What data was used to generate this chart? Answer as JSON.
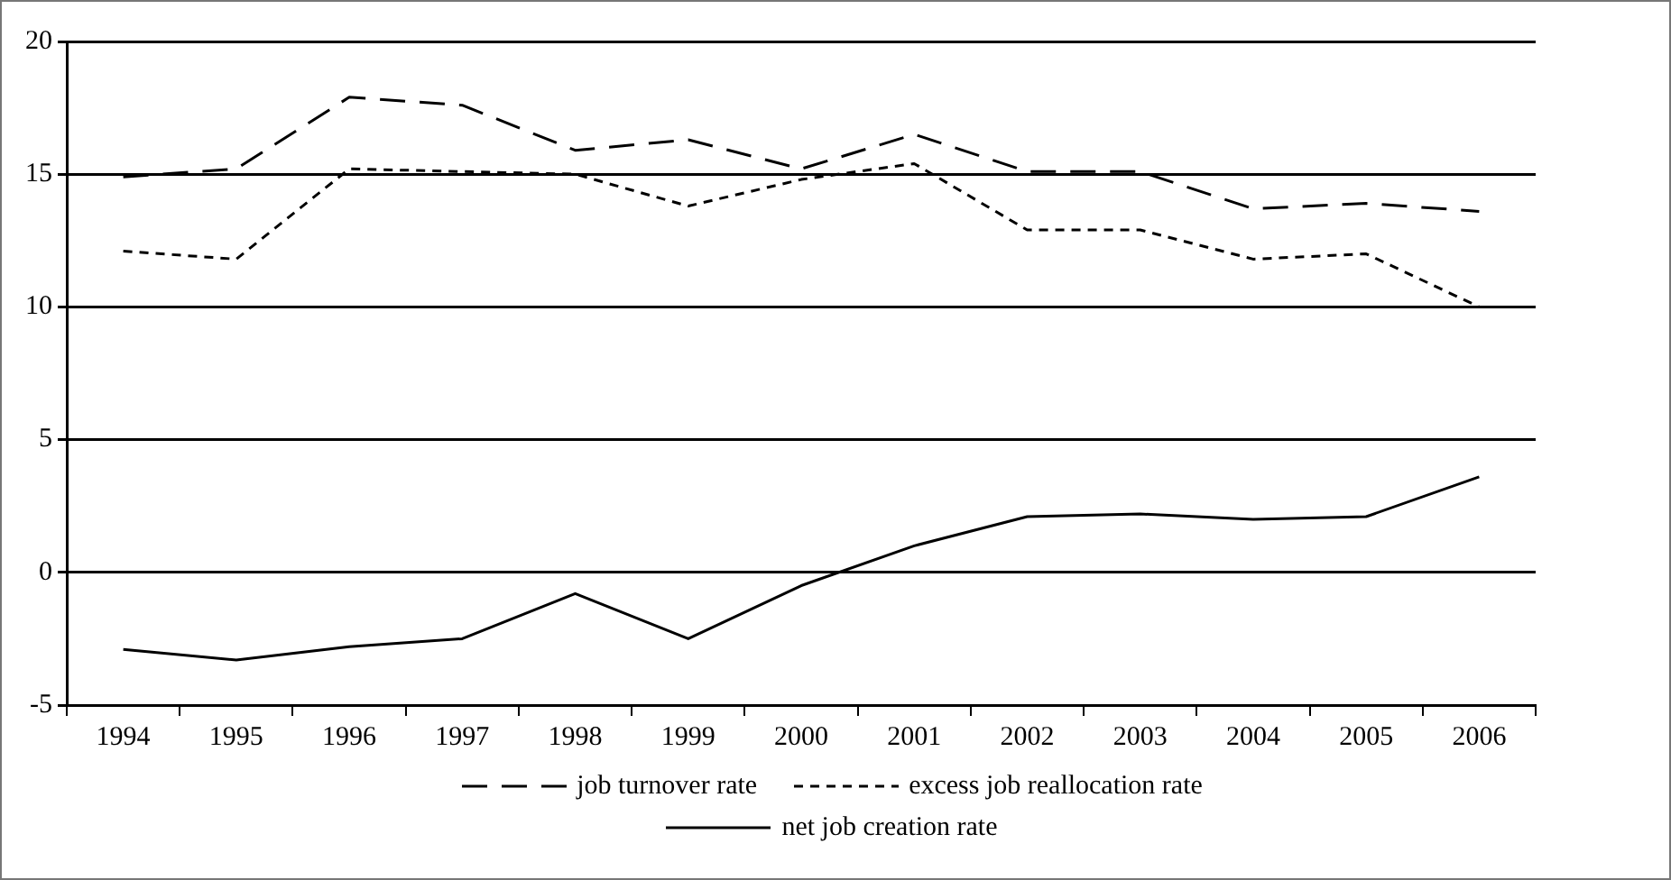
{
  "chart_data": {
    "type": "line",
    "categories": [
      "1994",
      "1995",
      "1996",
      "1997",
      "1998",
      "1999",
      "2000",
      "2001",
      "2002",
      "2003",
      "2004",
      "2005",
      "2006"
    ],
    "series": [
      {
        "name": "job turnover rate",
        "color": "#000000",
        "line_style": "dashed",
        "values": [
          14.9,
          15.2,
          17.9,
          17.6,
          15.9,
          16.3,
          15.2,
          16.5,
          15.1,
          15.1,
          13.7,
          13.9,
          13.6
        ]
      },
      {
        "name": "excess job reallocation rate",
        "color": "#000000",
        "line_style": "dotted",
        "values": [
          12.1,
          11.8,
          15.2,
          15.1,
          15.0,
          13.8,
          14.8,
          15.4,
          12.9,
          12.9,
          11.8,
          12.0,
          10.0
        ]
      },
      {
        "name": "net job creation rate",
        "color": "#000000",
        "line_style": "solid",
        "values": [
          -2.9,
          -3.3,
          -2.8,
          -2.5,
          -0.8,
          -2.5,
          -0.5,
          1.0,
          2.1,
          2.2,
          2.0,
          2.1,
          3.6
        ]
      }
    ],
    "ylim": [
      -5,
      20
    ],
    "yticks": [
      -5,
      0,
      5,
      10,
      15,
      20
    ],
    "grid": "y",
    "legend": "bottom",
    "marker": "none"
  }
}
